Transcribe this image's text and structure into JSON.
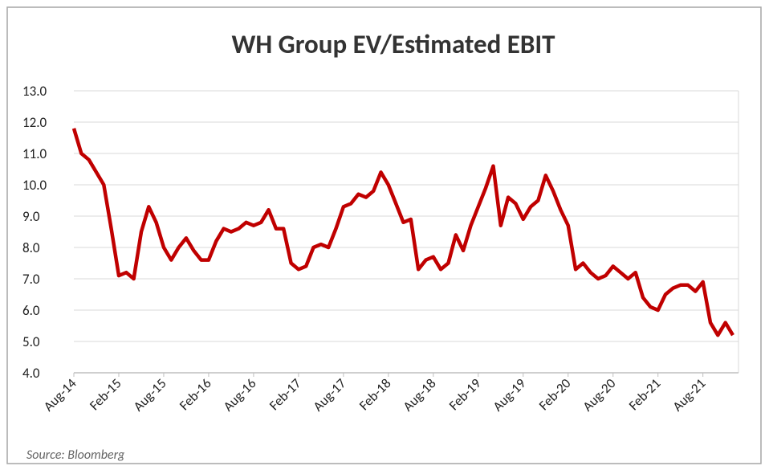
{
  "chart_data": {
    "type": "line",
    "title": "WH Group EV/Estimated EBIT",
    "source": "Source: Bloomberg",
    "categories": [
      "Aug-14",
      null,
      null,
      null,
      null,
      null,
      "Feb-15",
      null,
      null,
      null,
      null,
      null,
      "Aug-15",
      null,
      null,
      null,
      null,
      null,
      "Feb-16",
      null,
      null,
      null,
      null,
      null,
      "Aug-16",
      null,
      null,
      null,
      null,
      null,
      "Feb-17",
      null,
      null,
      null,
      null,
      null,
      "Aug-17",
      null,
      null,
      null,
      null,
      null,
      "Feb-18",
      null,
      null,
      null,
      null,
      null,
      "Aug-18",
      null,
      null,
      null,
      null,
      null,
      "Feb-19",
      null,
      null,
      null,
      null,
      null,
      "Aug-19",
      null,
      null,
      null,
      null,
      null,
      "Feb-20",
      null,
      null,
      null,
      null,
      null,
      "Aug-20",
      null,
      null,
      null,
      null,
      null,
      "Feb-21",
      null,
      null,
      null,
      null,
      null,
      "Aug-21",
      null,
      null,
      null,
      null
    ],
    "series": [
      {
        "name": "EV/Estimated EBIT",
        "color": "#c00000",
        "values": [
          11.8,
          11.0,
          10.8,
          10.4,
          10.0,
          8.6,
          7.1,
          7.2,
          7.0,
          8.5,
          9.3,
          8.8,
          8.0,
          7.6,
          8.0,
          8.3,
          7.9,
          7.6,
          7.6,
          8.2,
          8.6,
          8.5,
          8.6,
          8.8,
          8.7,
          8.8,
          9.2,
          8.6,
          8.6,
          7.5,
          7.3,
          7.4,
          8.0,
          8.1,
          8.0,
          8.6,
          9.3,
          9.4,
          9.7,
          9.6,
          9.8,
          10.4,
          10.0,
          9.4,
          8.8,
          8.9,
          7.3,
          7.6,
          7.7,
          7.3,
          7.5,
          8.4,
          7.9,
          8.7,
          9.3,
          9.9,
          10.6,
          8.7,
          9.6,
          9.4,
          8.9,
          9.3,
          9.5,
          10.3,
          9.8,
          9.2,
          8.7,
          7.3,
          7.5,
          7.2,
          7.0,
          7.1,
          7.4,
          7.2,
          7.0,
          7.2,
          6.4,
          6.1,
          6.0,
          6.5,
          6.7,
          6.8,
          6.8,
          6.6,
          6.9,
          5.6,
          5.2,
          5.6,
          5.2
        ]
      }
    ],
    "ylim": [
      4,
      13
    ],
    "yticks": [
      {
        "value": 4,
        "label": "4.0"
      },
      {
        "value": 5,
        "label": "5.0"
      },
      {
        "value": 6,
        "label": "6.0"
      },
      {
        "value": 7,
        "label": "7.0"
      },
      {
        "value": 8,
        "label": "8.0"
      },
      {
        "value": 9,
        "label": "9.0"
      },
      {
        "value": 10,
        "label": "10.0"
      },
      {
        "value": 11,
        "label": "11.0"
      },
      {
        "value": 12,
        "label": "12.0"
      },
      {
        "value": 13,
        "label": "13.0"
      }
    ],
    "grid": true
  }
}
